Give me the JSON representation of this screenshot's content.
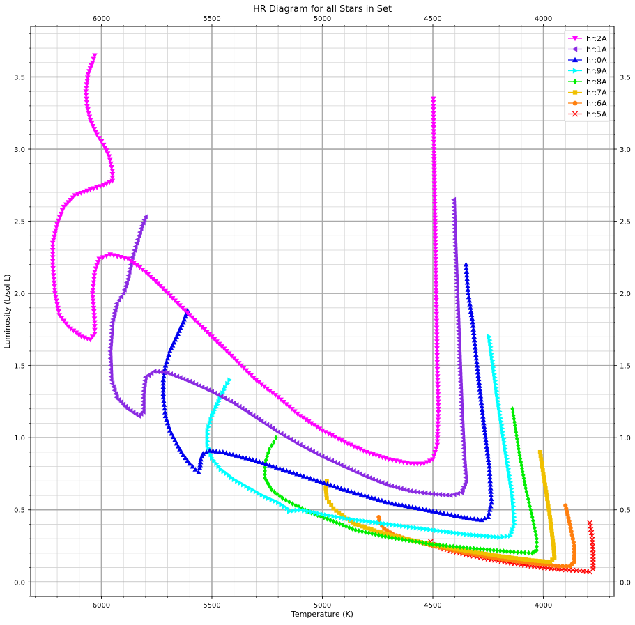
{
  "chart_data": {
    "type": "scatter",
    "title": "HR Diagram for all Stars in Set",
    "xlabel": "Temperature (K)",
    "ylabel": "Luminosity (L/sol L)",
    "xlim": [
      6320,
      3680
    ],
    "ylim": [
      -0.1,
      3.85
    ],
    "x_ticks": [
      {
        "value": 6000,
        "label": "6000"
      },
      {
        "value": 5500,
        "label": "5500"
      },
      {
        "value": 5000,
        "label": "5000"
      },
      {
        "value": 4500,
        "label": "4500"
      },
      {
        "value": 4000,
        "label": "4000"
      }
    ],
    "y_ticks": [
      {
        "value": 0.0,
        "label": "0.0"
      },
      {
        "value": 0.5,
        "label": "0.5"
      },
      {
        "value": 1.0,
        "label": "1.0"
      },
      {
        "value": 1.5,
        "label": "1.5"
      },
      {
        "value": 2.0,
        "label": "2.0"
      },
      {
        "value": 2.5,
        "label": "2.5"
      },
      {
        "value": 3.0,
        "label": "3.0"
      },
      {
        "value": 3.5,
        "label": "3.5"
      }
    ],
    "x_minor_step": 100,
    "y_minor_step": 0.1,
    "grid": true,
    "legend_position": "top-right",
    "series": [
      {
        "name": "hr:2A",
        "color": "#ff00ff",
        "marker": "triangle-down",
        "points": [
          [
            6030,
            3.65
          ],
          [
            6040,
            3.6
          ],
          [
            6060,
            3.52
          ],
          [
            6070,
            3.4
          ],
          [
            6065,
            3.3
          ],
          [
            6050,
            3.2
          ],
          [
            6020,
            3.1
          ],
          [
            5990,
            3.03
          ],
          [
            5965,
            2.95
          ],
          [
            5950,
            2.85
          ],
          [
            5950,
            2.78
          ],
          [
            5990,
            2.75
          ],
          [
            6050,
            2.72
          ],
          [
            6120,
            2.68
          ],
          [
            6170,
            2.6
          ],
          [
            6200,
            2.48
          ],
          [
            6220,
            2.35
          ],
          [
            6220,
            2.2
          ],
          [
            6210,
            2.0
          ],
          [
            6190,
            1.85
          ],
          [
            6150,
            1.77
          ],
          [
            6090,
            1.7
          ],
          [
            6050,
            1.68
          ],
          [
            6030,
            1.72
          ],
          [
            6030,
            1.8
          ],
          [
            6040,
            2.0
          ],
          [
            6030,
            2.15
          ],
          [
            6010,
            2.24
          ],
          [
            5960,
            2.27
          ],
          [
            5880,
            2.24
          ],
          [
            5800,
            2.15
          ],
          [
            5700,
            2.0
          ],
          [
            5600,
            1.85
          ],
          [
            5500,
            1.7
          ],
          [
            5400,
            1.55
          ],
          [
            5300,
            1.4
          ],
          [
            5200,
            1.28
          ],
          [
            5100,
            1.15
          ],
          [
            5000,
            1.05
          ],
          [
            4900,
            0.97
          ],
          [
            4800,
            0.9
          ],
          [
            4700,
            0.85
          ],
          [
            4600,
            0.82
          ],
          [
            4540,
            0.82
          ],
          [
            4500,
            0.85
          ],
          [
            4480,
            0.95
          ],
          [
            4475,
            1.2
          ],
          [
            4480,
            1.5
          ],
          [
            4485,
            2.0
          ],
          [
            4490,
            2.5
          ],
          [
            4495,
            3.0
          ],
          [
            4498,
            3.35
          ]
        ]
      },
      {
        "name": "hr:1A",
        "color": "#8a2be2",
        "marker": "triangle-left",
        "points": [
          [
            5800,
            2.53
          ],
          [
            5820,
            2.45
          ],
          [
            5840,
            2.35
          ],
          [
            5860,
            2.25
          ],
          [
            5880,
            2.1
          ],
          [
            5900,
            2.0
          ],
          [
            5930,
            1.93
          ],
          [
            5950,
            1.8
          ],
          [
            5960,
            1.6
          ],
          [
            5955,
            1.4
          ],
          [
            5930,
            1.28
          ],
          [
            5880,
            1.2
          ],
          [
            5830,
            1.15
          ],
          [
            5810,
            1.18
          ],
          [
            5810,
            1.3
          ],
          [
            5800,
            1.42
          ],
          [
            5760,
            1.46
          ],
          [
            5700,
            1.45
          ],
          [
            5600,
            1.39
          ],
          [
            5500,
            1.32
          ],
          [
            5400,
            1.24
          ],
          [
            5300,
            1.14
          ],
          [
            5200,
            1.04
          ],
          [
            5100,
            0.95
          ],
          [
            5000,
            0.87
          ],
          [
            4900,
            0.8
          ],
          [
            4800,
            0.73
          ],
          [
            4700,
            0.67
          ],
          [
            4600,
            0.63
          ],
          [
            4500,
            0.61
          ],
          [
            4420,
            0.6
          ],
          [
            4370,
            0.62
          ],
          [
            4350,
            0.7
          ],
          [
            4360,
            0.9
          ],
          [
            4370,
            1.2
          ],
          [
            4380,
            1.6
          ],
          [
            4390,
            2.0
          ],
          [
            4400,
            2.4
          ],
          [
            4405,
            2.65
          ]
        ]
      },
      {
        "name": "hr:0A",
        "color": "#0000ee",
        "marker": "triangle-up",
        "points": [
          [
            5610,
            1.88
          ],
          [
            5630,
            1.8
          ],
          [
            5660,
            1.7
          ],
          [
            5690,
            1.6
          ],
          [
            5710,
            1.5
          ],
          [
            5720,
            1.4
          ],
          [
            5720,
            1.28
          ],
          [
            5710,
            1.15
          ],
          [
            5690,
            1.05
          ],
          [
            5660,
            0.96
          ],
          [
            5630,
            0.88
          ],
          [
            5600,
            0.82
          ],
          [
            5575,
            0.78
          ],
          [
            5560,
            0.76
          ],
          [
            5555,
            0.79
          ],
          [
            5550,
            0.85
          ],
          [
            5540,
            0.89
          ],
          [
            5510,
            0.91
          ],
          [
            5450,
            0.9
          ],
          [
            5300,
            0.84
          ],
          [
            5100,
            0.74
          ],
          [
            4900,
            0.64
          ],
          [
            4700,
            0.55
          ],
          [
            4500,
            0.49
          ],
          [
            4400,
            0.46
          ],
          [
            4330,
            0.44
          ],
          [
            4280,
            0.43
          ],
          [
            4250,
            0.45
          ],
          [
            4235,
            0.55
          ],
          [
            4245,
            0.8
          ],
          [
            4270,
            1.1
          ],
          [
            4300,
            1.5
          ],
          [
            4320,
            1.8
          ],
          [
            4340,
            2.0
          ],
          [
            4350,
            2.2
          ]
        ]
      },
      {
        "name": "hr:9A",
        "color": "#00ffff",
        "marker": "triangle-right",
        "points": [
          [
            5420,
            1.4
          ],
          [
            5440,
            1.35
          ],
          [
            5470,
            1.25
          ],
          [
            5500,
            1.15
          ],
          [
            5520,
            1.05
          ],
          [
            5520,
            0.95
          ],
          [
            5500,
            0.86
          ],
          [
            5460,
            0.78
          ],
          [
            5400,
            0.71
          ],
          [
            5330,
            0.65
          ],
          [
            5260,
            0.59
          ],
          [
            5200,
            0.55
          ],
          [
            5160,
            0.51
          ],
          [
            5150,
            0.49
          ],
          [
            5100,
            0.5
          ],
          [
            5000,
            0.47
          ],
          [
            4900,
            0.44
          ],
          [
            4700,
            0.4
          ],
          [
            4500,
            0.36
          ],
          [
            4350,
            0.33
          ],
          [
            4200,
            0.31
          ],
          [
            4150,
            0.32
          ],
          [
            4130,
            0.4
          ],
          [
            4140,
            0.6
          ],
          [
            4170,
            0.9
          ],
          [
            4210,
            1.3
          ],
          [
            4245,
            1.7
          ]
        ]
      },
      {
        "name": "hr:8A",
        "color": "#00ee00",
        "marker": "diamond",
        "points": [
          [
            5210,
            1.0
          ],
          [
            5220,
            0.97
          ],
          [
            5240,
            0.92
          ],
          [
            5260,
            0.82
          ],
          [
            5260,
            0.72
          ],
          [
            5230,
            0.64
          ],
          [
            5180,
            0.58
          ],
          [
            5120,
            0.53
          ],
          [
            5050,
            0.48
          ],
          [
            4950,
            0.42
          ],
          [
            4850,
            0.36
          ],
          [
            4700,
            0.31
          ],
          [
            4500,
            0.26
          ],
          [
            4300,
            0.23
          ],
          [
            4150,
            0.21
          ],
          [
            4050,
            0.2
          ],
          [
            4030,
            0.22
          ],
          [
            4030,
            0.3
          ],
          [
            4050,
            0.45
          ],
          [
            4080,
            0.65
          ],
          [
            4110,
            0.9
          ],
          [
            4140,
            1.2
          ]
        ]
      },
      {
        "name": "hr:7A",
        "color": "#f0c000",
        "marker": "square",
        "points": [
          [
            4980,
            0.7
          ],
          [
            4985,
            0.65
          ],
          [
            4980,
            0.58
          ],
          [
            4950,
            0.51
          ],
          [
            4900,
            0.45
          ],
          [
            4850,
            0.4
          ],
          [
            4750,
            0.35
          ],
          [
            4600,
            0.29
          ],
          [
            4400,
            0.23
          ],
          [
            4200,
            0.18
          ],
          [
            4050,
            0.15
          ],
          [
            3970,
            0.14
          ],
          [
            3950,
            0.17
          ],
          [
            3955,
            0.26
          ],
          [
            3970,
            0.45
          ],
          [
            3990,
            0.65
          ],
          [
            4015,
            0.9
          ]
        ]
      },
      {
        "name": "hr:6A",
        "color": "#ff7f0e",
        "marker": "circle",
        "points": [
          [
            4745,
            0.45
          ],
          [
            4740,
            0.41
          ],
          [
            4720,
            0.37
          ],
          [
            4680,
            0.33
          ],
          [
            4620,
            0.3
          ],
          [
            4500,
            0.25
          ],
          [
            4350,
            0.2
          ],
          [
            4200,
            0.16
          ],
          [
            4050,
            0.13
          ],
          [
            3930,
            0.11
          ],
          [
            3880,
            0.11
          ],
          [
            3860,
            0.14
          ],
          [
            3860,
            0.25
          ],
          [
            3880,
            0.4
          ],
          [
            3900,
            0.53
          ]
        ]
      },
      {
        "name": "hr:5A",
        "color": "#ff0000",
        "marker": "x",
        "points": [
          [
            4510,
            0.28
          ],
          [
            4500,
            0.26
          ],
          [
            4450,
            0.23
          ],
          [
            4350,
            0.19
          ],
          [
            4250,
            0.16
          ],
          [
            4100,
            0.12
          ],
          [
            3950,
            0.09
          ],
          [
            3850,
            0.08
          ],
          [
            3790,
            0.07
          ],
          [
            3775,
            0.09
          ],
          [
            3775,
            0.2
          ],
          [
            3780,
            0.32
          ],
          [
            3790,
            0.41
          ]
        ]
      }
    ]
  }
}
